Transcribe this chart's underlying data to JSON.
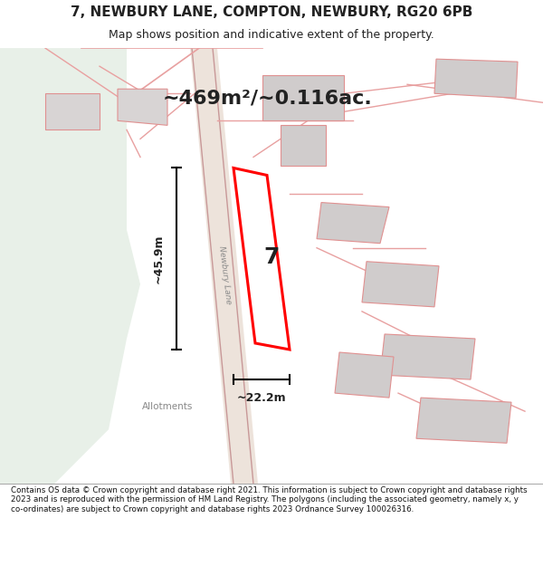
{
  "title": "7, NEWBURY LANE, COMPTON, NEWBURY, RG20 6PB",
  "subtitle": "Map shows position and indicative extent of the property.",
  "footer": "Contains OS data © Crown copyright and database right 2021. This information is subject to Crown copyright and database rights 2023 and is reproduced with the permission of HM Land Registry. The polygons (including the associated geometry, namely x, y co-ordinates) are subject to Crown copyright and database rights 2023 Ordnance Survey 100026316.",
  "area_label": "~469m²/~0.116ac.",
  "width_label": "~22.2m",
  "height_label": "~45.9m",
  "property_number": "7",
  "allotments_label": "Allotments",
  "newbury_lane_label": "Newbury Lane",
  "bg_color": "#f5f5f5",
  "map_bg": "#f0f0f0",
  "green_area": "#e8f0e8",
  "road_color": "#e8c8c8",
  "building_color": "#d8d8d8",
  "highlight_color": "#ff0000",
  "text_color": "#222222",
  "footer_color": "#111111"
}
